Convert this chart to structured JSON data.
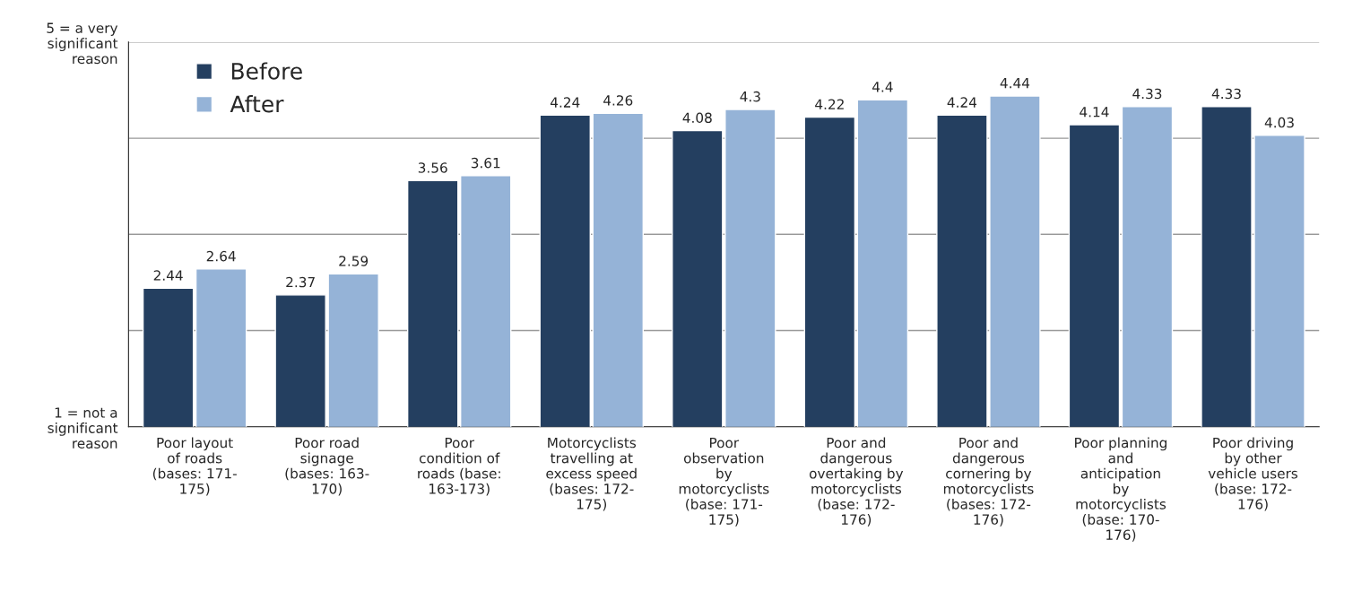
{
  "chart_data": {
    "type": "bar",
    "categories": [
      "Poor layout\nof roads\n(bases: 171-\n175)",
      "Poor road\nsignage\n(bases: 163-\n170)",
      "Poor\ncondition of\nroads (base:\n163-173)",
      "Motorcyclists\ntravelling at\nexcess speed\n(bases: 172-\n175)",
      "Poor\nobservation\nby\nmotorcyclists\n(base: 171-\n175)",
      "Poor and\ndangerous\novertaking by\nmotorcyclists\n(base: 172-\n176)",
      "Poor and\ndangerous\ncornering by\nmotorcyclists\n(bases: 172-\n176)",
      "Poor planning\nand\nanticipation\nby\nmotorcyclists\n(base: 170-\n176)",
      "Poor driving\nby other\nvehicle users\n(base: 172-\n176)"
    ],
    "series": [
      {
        "name": "Before",
        "color": "#243f60",
        "values": [
          2.44,
          2.37,
          3.56,
          4.24,
          4.08,
          4.22,
          4.24,
          4.14,
          4.33
        ]
      },
      {
        "name": "After",
        "color": "#95b3d7",
        "values": [
          2.64,
          2.59,
          3.61,
          4.26,
          4.3,
          4.4,
          4.44,
          4.33,
          4.03
        ]
      }
    ],
    "ylim": [
      1,
      5
    ],
    "yticks": [
      {
        "value": 1,
        "label": "1 = not a\nsignificant\nreason"
      },
      {
        "value": 2,
        "label": null
      },
      {
        "value": 3,
        "label": null
      },
      {
        "value": 4,
        "label": null
      },
      {
        "value": 5,
        "label": "5 = a very\nsignificant\nreason"
      }
    ],
    "grid": "y",
    "legend": "top left",
    "data_labels": true
  }
}
